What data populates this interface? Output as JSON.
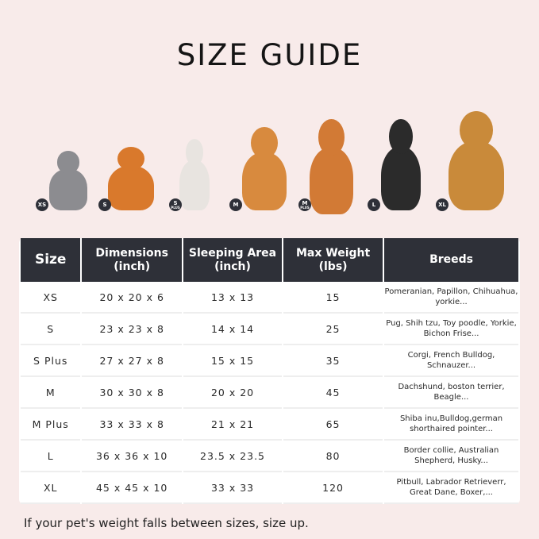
{
  "title": "SIZE GUIDE",
  "pets": [
    {
      "badge": "XS",
      "plus": "",
      "color": "#8c8c90"
    },
    {
      "badge": "S",
      "plus": "",
      "color": "#d9792c"
    },
    {
      "badge": "S",
      "plus": "PLUS",
      "color": "#e8e4e0"
    },
    {
      "badge": "M",
      "plus": "",
      "color": "#d88a3e"
    },
    {
      "badge": "M",
      "plus": "PLUS",
      "color": "#d27a35"
    },
    {
      "badge": "L",
      "plus": "",
      "color": "#2b2b2b"
    },
    {
      "badge": "XL",
      "plus": "",
      "color": "#c98a3a"
    }
  ],
  "table": {
    "headers": [
      "Size",
      "Dimensions (inch)",
      "Sleeping Area (inch)",
      "Max Weight (lbs)",
      "Breeds"
    ],
    "rows": [
      [
        "XS",
        "20 x 20 x 6",
        "13 x 13",
        "15",
        "Pomeranian, Papillon, Chihuahua, yorkie..."
      ],
      [
        "S",
        "23 x 23 x 8",
        "14 x 14",
        "25",
        "Pug, Shih tzu, Toy poodle, Yorkie, Bichon Frise..."
      ],
      [
        "S Plus",
        "27 x 27 x 8",
        "15 x 15",
        "35",
        "Corgi, French Bulldog, Schnauzer..."
      ],
      [
        "M",
        "30 x 30 x 8",
        "20 x 20",
        "45",
        "Dachshund, boston terrier, Beagle..."
      ],
      [
        "M Plus",
        "33 x 33 x 8",
        "21 x 21",
        "65",
        "Shiba inu,Bulldog,german shorthaired pointer..."
      ],
      [
        "L",
        "36 x 36 x 10",
        "23.5 x 23.5",
        "80",
        "Border collie, Australian Shepherd, Husky..."
      ],
      [
        "XL",
        "45 x 45 x 10",
        "33 x 33",
        "120",
        "Pitbull, Labrador Retrieverr, Great Dane, Boxer,..."
      ]
    ]
  },
  "note": "If your pet's weight falls between sizes, size up."
}
